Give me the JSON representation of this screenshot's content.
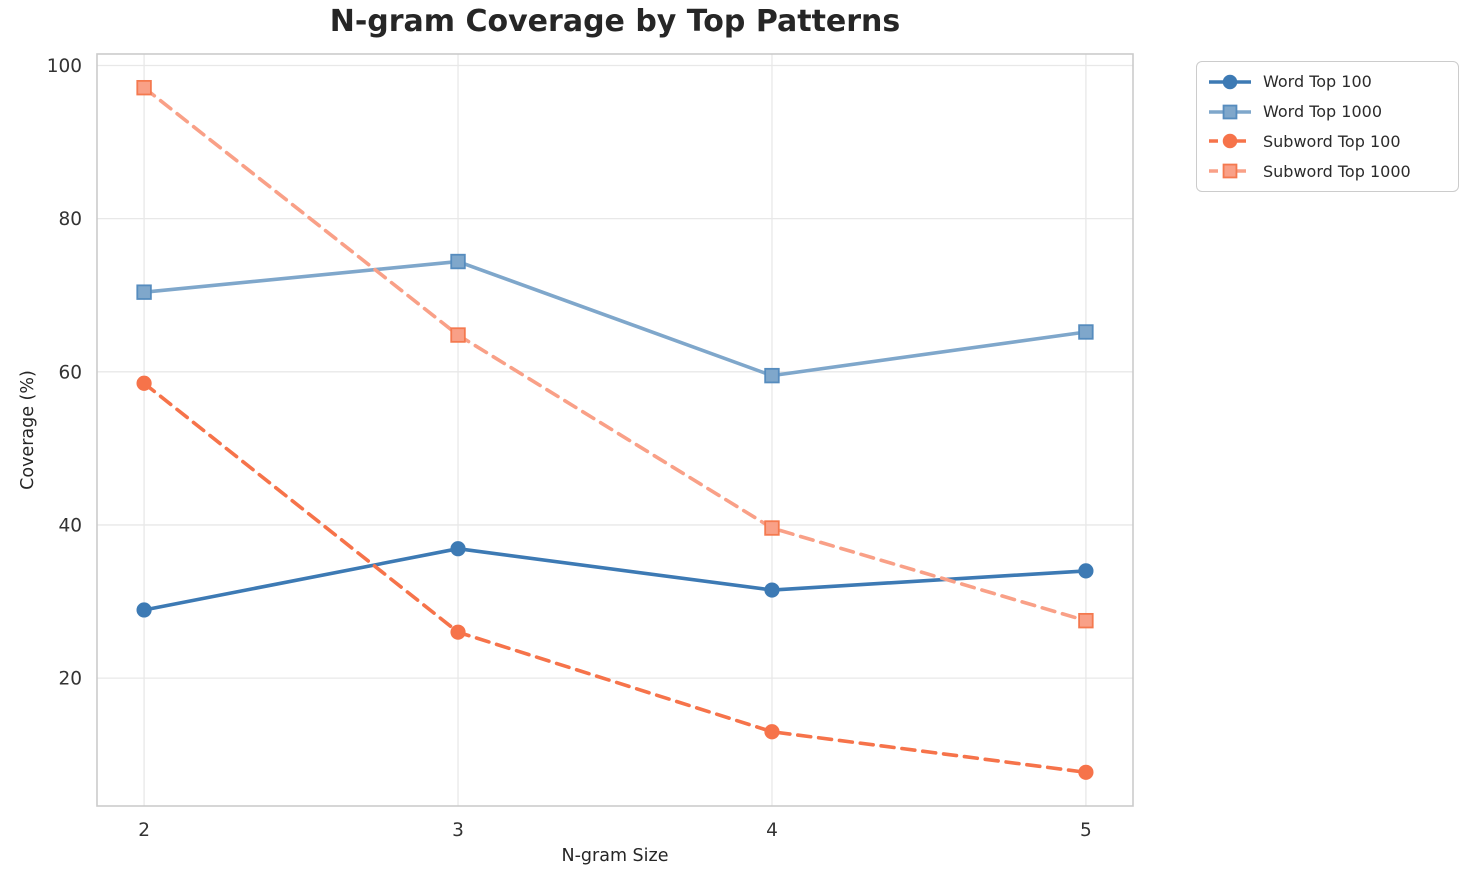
{
  "chart_data": {
    "type": "line",
    "title": "N-gram Coverage by Top Patterns",
    "xlabel": "N-gram Size",
    "ylabel": "Coverage (%)",
    "x": [
      2,
      3,
      4,
      5
    ],
    "xtick_labels": [
      "2",
      "3",
      "4",
      "5"
    ],
    "yticks": [
      20,
      40,
      60,
      80,
      100
    ],
    "ytick_labels": [
      "20",
      "40",
      "60",
      "80",
      "100"
    ],
    "xlim": [
      1.85,
      5.15
    ],
    "ylim": [
      3.3,
      101.5
    ],
    "grid": "both",
    "legend_position": "outside-upper-right",
    "series": [
      {
        "name": "Word Top 100",
        "values": [
          28.9,
          36.9,
          31.5,
          34.0
        ],
        "color": "#3D7AB4",
        "edge_color": "#3D7AB4",
        "linestyle": "solid",
        "marker": "circle"
      },
      {
        "name": "Word Top 1000",
        "values": [
          70.4,
          74.4,
          59.5,
          65.2
        ],
        "color": "#7FA7CB",
        "edge_color": "#568CBE",
        "linestyle": "solid",
        "marker": "square"
      },
      {
        "name": "Subword Top 100",
        "values": [
          58.5,
          26.0,
          13.0,
          7.7
        ],
        "color": "#F6734A",
        "edge_color": "#F6734A",
        "linestyle": "dashed",
        "marker": "circle"
      },
      {
        "name": "Subword Top 1000",
        "values": [
          97.1,
          64.8,
          39.6,
          27.5
        ],
        "color": "#F9A087",
        "edge_color": "#F4794F",
        "linestyle": "dashed",
        "marker": "square"
      }
    ]
  },
  "styles": {
    "text_color": "#262626",
    "tick_label_color": "#333333",
    "grid_color": "#e8e8e8",
    "spine_color": "#cbcbcb",
    "legend_border_color": "#cccccc",
    "background": "#ffffff"
  }
}
